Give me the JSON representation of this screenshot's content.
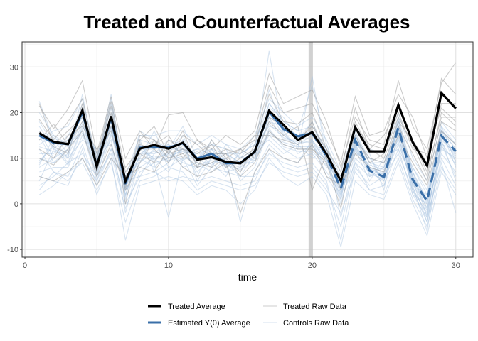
{
  "chart_data": {
    "type": "line",
    "title": "Treated and Counterfactual Averages",
    "xlabel": "time",
    "ylabel": "",
    "xlim": [
      -0.2,
      31.2
    ],
    "ylim": [
      -11.7,
      35.5
    ],
    "xticks": [
      0,
      10,
      20,
      30
    ],
    "yticks": [
      -10,
      0,
      10,
      20,
      30
    ],
    "xtick_labels": [
      "0",
      "10",
      "20",
      "30"
    ],
    "ytick_labels": [
      "-10",
      "0",
      "10",
      "20",
      "30"
    ],
    "grid": true,
    "treatment_time": 19.9,
    "legend_position": "bottom",
    "x": [
      1,
      2,
      3,
      4,
      5,
      6,
      7,
      8,
      9,
      10,
      11,
      12,
      13,
      14,
      15,
      16,
      17,
      18,
      19,
      20,
      21,
      22,
      23,
      24,
      25,
      26,
      27,
      28,
      29,
      30
    ],
    "series": [
      {
        "name": "Treated Average",
        "color": "#000000",
        "style": "solid",
        "values": [
          15.5,
          13.6,
          13.1,
          20.5,
          8.2,
          19.2,
          5.0,
          12.1,
          12.9,
          12.1,
          13.4,
          9.7,
          10.2,
          9.2,
          8.9,
          11.4,
          20.4,
          17.3,
          14.0,
          15.7,
          10.9,
          5.0,
          16.8,
          11.5,
          11.5,
          21.7,
          13.5,
          8.4,
          24.3,
          20.9
        ]
      },
      {
        "name": "Estimated Y(0) Average",
        "color": "#3a6fa8",
        "style": "dashed-after-treatment",
        "values": [
          15.0,
          13.4,
          13.1,
          20.1,
          8.4,
          18.9,
          4.5,
          12.3,
          12.4,
          12.3,
          13.3,
          9.9,
          11.0,
          8.9,
          9.0,
          11.4,
          20.2,
          16.4,
          14.8,
          15.5,
          10.5,
          3.4,
          14.0,
          7.3,
          5.9,
          16.7,
          5.3,
          0.6,
          14.9,
          11.5
        ]
      },
      {
        "name": "Treated Raw Data",
        "color": "#9a9a9a",
        "lines": [
          [
            21.5,
            16.5,
            20.8,
            27.0,
            11.0,
            23.5,
            10.0,
            16.0,
            12.0,
            19.5,
            20.0,
            14.0,
            12.0,
            15.0,
            13.0,
            16.0,
            28.5,
            22.0,
            23.5,
            25.0,
            18.0,
            8.0,
            19.0,
            14.0,
            13.0,
            27.0,
            17.0,
            12.0,
            26.5,
            31.0
          ],
          [
            18.5,
            14.0,
            18.0,
            23.0,
            9.0,
            21.5,
            3.5,
            15.0,
            14.0,
            11.0,
            16.0,
            8.0,
            14.0,
            10.0,
            12.0,
            14.0,
            26.0,
            20.0,
            21.0,
            22.0,
            16.0,
            9.0,
            23.5,
            15.0,
            16.0,
            24.0,
            19.0,
            10.0,
            27.5,
            24.0
          ],
          [
            16.0,
            12.5,
            11.0,
            22.0,
            7.0,
            20.0,
            0.0,
            14.0,
            17.0,
            11.0,
            12.0,
            9.0,
            8.0,
            10.0,
            7.0,
            13.0,
            24.0,
            18.0,
            17.5,
            20.0,
            12.0,
            7.0,
            21.0,
            12.0,
            15.0,
            21.0,
            14.0,
            9.0,
            22.0,
            22.0
          ],
          [
            14.0,
            17.5,
            13.0,
            18.0,
            10.0,
            22.5,
            7.0,
            11.0,
            9.0,
            14.0,
            12.0,
            11.0,
            13.0,
            8.0,
            10.0,
            12.0,
            19.0,
            17.0,
            14.0,
            17.0,
            12.0,
            3.0,
            17.0,
            13.0,
            12.0,
            20.0,
            12.0,
            11.0,
            21.0,
            18.0
          ],
          [
            12.0,
            10.0,
            15.0,
            17.0,
            12.0,
            16.0,
            5.0,
            13.0,
            12.0,
            9.0,
            15.0,
            13.0,
            10.0,
            12.0,
            11.0,
            15.0,
            15.0,
            14.0,
            13.0,
            18.0,
            10.0,
            6.0,
            15.0,
            9.0,
            11.0,
            19.0,
            13.0,
            6.0,
            20.0,
            17.0
          ],
          [
            10.0,
            8.5,
            12.0,
            16.0,
            6.0,
            13.0,
            3.0,
            9.0,
            14.0,
            10.0,
            11.0,
            8.0,
            9.0,
            11.0,
            6.0,
            9.0,
            16.0,
            13.0,
            12.0,
            12.0,
            9.0,
            -1.0,
            14.0,
            10.0,
            9.0,
            17.0,
            11.0,
            5.0,
            18.0,
            16.0
          ],
          [
            6.0,
            5.0,
            7.0,
            10.0,
            4.0,
            10.0,
            6.0,
            8.0,
            7.0,
            12.0,
            8.0,
            6.0,
            7.0,
            9.0,
            -2.0,
            7.0,
            12.0,
            10.0,
            9.0,
            13.0,
            6.0,
            4.0,
            11.0,
            8.0,
            7.0,
            15.0,
            9.0,
            4.0,
            16.0,
            13.0
          ],
          [
            22.0,
            13.0,
            16.0,
            19.0,
            9.0,
            17.0,
            8.0,
            12.0,
            13.0,
            15.0,
            10.0,
            14.0,
            11.0,
            11.0,
            12.0,
            10.0,
            18.0,
            15.0,
            17.0,
            3.0,
            11.0,
            5.0,
            18.0,
            12.0,
            10.0,
            18.0,
            14.0,
            7.0,
            19.0,
            19.0
          ]
        ]
      },
      {
        "name": "Controls Raw Data",
        "color": "#a9c4e0",
        "lines": [
          [
            22.5,
            14.0,
            10.0,
            24.0,
            8.0,
            22.0,
            4.0,
            12.0,
            10.0,
            11.0,
            15.0,
            8.0,
            9.0,
            10.0,
            7.0,
            12.0,
            25.0,
            16.0,
            12.0,
            28.0,
            10.0,
            4.0,
            14.0,
            8.0,
            6.0,
            18.0,
            6.0,
            1.0,
            16.0,
            12.0
          ],
          [
            17.0,
            12.0,
            15.0,
            20.0,
            10.0,
            19.0,
            3.0,
            14.0,
            13.0,
            12.0,
            12.0,
            11.0,
            12.0,
            7.0,
            8.0,
            10.0,
            22.0,
            18.0,
            16.0,
            17.0,
            12.0,
            2.0,
            15.0,
            9.0,
            5.0,
            17.0,
            5.0,
            -1.0,
            15.0,
            10.0
          ],
          [
            15.0,
            9.0,
            12.0,
            18.0,
            6.0,
            17.0,
            6.0,
            10.0,
            16.0,
            9.0,
            14.0,
            10.0,
            8.0,
            13.0,
            10.0,
            14.0,
            20.0,
            15.0,
            13.0,
            15.0,
            11.0,
            5.0,
            13.0,
            7.0,
            8.0,
            16.0,
            4.0,
            2.0,
            14.0,
            11.0
          ],
          [
            13.0,
            15.0,
            11.0,
            21.0,
            9.0,
            20.0,
            2.0,
            11.0,
            11.0,
            14.0,
            13.0,
            9.0,
            14.0,
            9.0,
            6.0,
            11.0,
            18.0,
            17.0,
            15.0,
            14.0,
            9.0,
            1.0,
            16.0,
            6.0,
            7.0,
            18.0,
            7.0,
            0.0,
            17.0,
            9.0
          ],
          [
            11.0,
            11.0,
            14.0,
            19.0,
            7.0,
            18.0,
            5.0,
            13.0,
            9.0,
            10.0,
            12.0,
            7.0,
            10.0,
            11.0,
            9.0,
            9.0,
            19.0,
            14.0,
            14.0,
            16.0,
            13.0,
            3.0,
            12.0,
            8.0,
            4.0,
            15.0,
            3.0,
            -2.0,
            13.0,
            12.0
          ],
          [
            9.0,
            13.0,
            9.0,
            17.0,
            11.0,
            16.0,
            1.0,
            9.0,
            12.0,
            13.0,
            11.0,
            12.0,
            11.0,
            8.0,
            11.0,
            13.0,
            17.0,
            16.0,
            11.0,
            13.0,
            8.0,
            6.0,
            14.0,
            9.0,
            9.0,
            14.0,
            8.0,
            3.0,
            16.0,
            8.0
          ],
          [
            8.0,
            10.0,
            13.0,
            16.0,
            5.0,
            15.0,
            7.0,
            12.0,
            14.0,
            8.0,
            10.0,
            10.0,
            13.0,
            12.0,
            5.0,
            8.0,
            16.0,
            13.0,
            12.0,
            12.0,
            10.0,
            0.0,
            11.0,
            10.0,
            6.0,
            13.0,
            5.0,
            -4.0,
            12.0,
            10.0
          ],
          [
            7.0,
            8.0,
            8.0,
            15.0,
            9.0,
            14.0,
            -2.0,
            10.0,
            8.0,
            11.0,
            9.0,
            8.0,
            9.0,
            6.0,
            12.0,
            10.0,
            15.0,
            12.0,
            10.0,
            11.0,
            7.0,
            2.0,
            12.0,
            5.0,
            10.0,
            12.0,
            6.0,
            -1.0,
            11.0,
            7.0
          ],
          [
            5.0,
            12.0,
            10.0,
            14.0,
            12.0,
            13.0,
            3.0,
            8.0,
            10.0,
            7.0,
            13.0,
            6.0,
            12.0,
            9.0,
            8.0,
            12.0,
            14.0,
            11.0,
            13.0,
            10.0,
            12.0,
            -3.0,
            10.0,
            7.0,
            5.0,
            17.0,
            4.0,
            -6.0,
            13.0,
            6.0
          ],
          [
            12.0,
            7.0,
            6.0,
            13.0,
            4.0,
            12.0,
            5.0,
            6.0,
            11.0,
            12.0,
            8.0,
            9.0,
            7.0,
            10.0,
            -4.0,
            7.0,
            13.0,
            10.0,
            9.0,
            14.0,
            6.0,
            1.0,
            9.0,
            6.0,
            8.0,
            16.0,
            7.0,
            -3.0,
            14.0,
            5.0
          ],
          [
            10.0,
            9.0,
            11.0,
            22.0,
            8.0,
            23.0,
            4.0,
            14.0,
            7.0,
            9.0,
            14.0,
            5.0,
            10.0,
            8.0,
            9.0,
            11.0,
            21.0,
            19.0,
            14.0,
            18.0,
            11.0,
            4.0,
            13.0,
            11.0,
            3.0,
            19.0,
            2.0,
            0.0,
            16.0,
            13.0
          ],
          [
            4.0,
            6.0,
            9.0,
            11.0,
            6.0,
            11.0,
            -1.0,
            7.0,
            9.0,
            -3.0,
            10.0,
            4.0,
            8.0,
            7.0,
            6.0,
            6.0,
            11.0,
            9.0,
            8.0,
            9.0,
            5.0,
            -8.0,
            8.0,
            4.0,
            6.0,
            11.0,
            3.0,
            -4.0,
            10.0,
            4.0
          ],
          [
            14.0,
            16.0,
            17.0,
            23.0,
            10.0,
            21.0,
            6.0,
            15.0,
            15.0,
            16.0,
            16.0,
            13.0,
            15.0,
            13.0,
            12.0,
            15.0,
            23.0,
            20.0,
            17.0,
            19.0,
            14.0,
            7.0,
            17.0,
            12.0,
            11.0,
            20.0,
            10.0,
            5.0,
            18.0,
            14.0
          ],
          [
            2.0,
            4.0,
            7.0,
            9.0,
            3.0,
            9.0,
            -4.0,
            5.0,
            6.0,
            8.0,
            7.0,
            3.0,
            5.0,
            4.0,
            3.0,
            4.0,
            9.0,
            7.0,
            6.0,
            7.0,
            3.0,
            -2.0,
            7.0,
            3.0,
            2.0,
            10.0,
            1.0,
            -5.0,
            8.0,
            3.0
          ],
          [
            16.0,
            10.0,
            12.0,
            20.0,
            7.0,
            19.0,
            2.0,
            11.0,
            13.0,
            10.0,
            12.0,
            10.0,
            11.0,
            11.0,
            9.0,
            11.0,
            33.5,
            15.0,
            13.0,
            14.0,
            10.0,
            3.0,
            13.0,
            8.0,
            7.0,
            17.0,
            6.0,
            1.0,
            15.0,
            11.0
          ],
          [
            6.0,
            5.0,
            4.0,
            12.0,
            2.0,
            10.0,
            -8.0,
            4.0,
            5.0,
            6.0,
            5.0,
            2.0,
            4.0,
            3.0,
            0.0,
            3.0,
            10.0,
            6.0,
            4.0,
            6.0,
            2.0,
            -9.5,
            5.0,
            2.0,
            1.0,
            9.0,
            0.0,
            -7.0,
            7.0,
            2.0
          ],
          [
            18.0,
            13.0,
            14.0,
            19.0,
            11.0,
            17.0,
            5.0,
            12.0,
            12.0,
            13.0,
            11.0,
            12.0,
            13.0,
            12.0,
            10.0,
            12.0,
            19.0,
            17.0,
            15.0,
            16.0,
            12.0,
            6.0,
            15.0,
            10.0,
            9.0,
            16.0,
            8.0,
            2.0,
            16.0,
            12.0
          ],
          [
            12.5,
            11.5,
            10.5,
            17.5,
            8.5,
            16.5,
            3.5,
            10.5,
            11.5,
            10.5,
            11.5,
            9.5,
            10.5,
            9.5,
            8.5,
            10.5,
            17.5,
            14.5,
            13.5,
            13.5,
            9.5,
            3.5,
            12.5,
            7.5,
            6.5,
            15.5,
            5.5,
            0.5,
            14.5,
            10.5
          ],
          [
            8.5,
            14.5,
            12.5,
            15.5,
            10.5,
            18.5,
            1.5,
            13.5,
            9.5,
            11.5,
            9.5,
            11.5,
            8.5,
            10.5,
            10.5,
            9.5,
            16.5,
            12.5,
            11.5,
            11.5,
            8.5,
            2.5,
            11.5,
            8.5,
            7.5,
            13.5,
            4.5,
            -1.5,
            12.5,
            9.5
          ],
          [
            3.0,
            7.0,
            5.0,
            10.0,
            5.0,
            12.0,
            0.0,
            6.0,
            7.0,
            5.0,
            6.0,
            5.0,
            6.0,
            5.0,
            4.0,
            5.0,
            12.0,
            8.0,
            7.0,
            8.0,
            4.0,
            -5.0,
            9.0,
            3.0,
            4.0,
            12.0,
            2.0,
            -3.0,
            9.0,
            -2.0
          ],
          [
            20.0,
            15.0,
            13.0,
            21.0,
            9.0,
            24.0,
            3.0,
            16.0,
            14.0,
            12.0,
            17.0,
            10.0,
            12.0,
            11.0,
            11.0,
            13.0,
            22.0,
            18.0,
            16.0,
            26.0,
            13.0,
            5.0,
            16.0,
            9.0,
            8.0,
            19.0,
            7.0,
            1.0,
            17.0,
            13.0
          ],
          [
            9.5,
            12.5,
            8.5,
            16.5,
            6.5,
            15.5,
            4.5,
            9.5,
            10.5,
            9.5,
            10.5,
            8.5,
            9.5,
            8.5,
            7.5,
            9.5,
            15.5,
            13.5,
            12.5,
            12.5,
            9.5,
            1.5,
            12.5,
            6.5,
            5.5,
            14.5,
            3.5,
            -2.5,
            13.5,
            8.5
          ]
        ]
      }
    ]
  }
}
